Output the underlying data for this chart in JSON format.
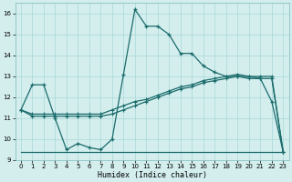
{
  "xlabel": "Humidex (Indice chaleur)",
  "ylabel": "",
  "xlim": [
    -0.5,
    23.5
  ],
  "ylim": [
    9,
    16.5
  ],
  "yticks": [
    9,
    10,
    11,
    12,
    13,
    14,
    15,
    16
  ],
  "xticks": [
    0,
    1,
    2,
    3,
    4,
    5,
    6,
    7,
    8,
    9,
    10,
    11,
    12,
    13,
    14,
    15,
    16,
    17,
    18,
    19,
    20,
    21,
    22,
    23
  ],
  "bg_color": "#d4eeee",
  "line_color": "#1a6b6b",
  "line1_x": [
    0,
    1,
    2,
    3,
    4,
    5,
    6,
    7,
    8,
    9,
    10,
    11,
    12,
    13,
    14,
    15,
    16,
    17,
    18,
    19,
    20,
    21,
    22,
    23
  ],
  "line1_y": [
    11.4,
    12.6,
    12.6,
    11.0,
    9.5,
    9.8,
    9.6,
    9.5,
    10.0,
    13.1,
    16.2,
    15.4,
    15.4,
    15.0,
    14.1,
    14.1,
    13.5,
    13.2,
    13.0,
    13.0,
    13.0,
    12.9,
    11.8,
    9.4
  ],
  "line2_x": [
    0,
    1,
    2,
    3,
    4,
    5,
    6,
    7,
    8,
    9,
    10,
    11,
    12,
    13,
    14,
    15,
    16,
    17,
    18,
    19,
    20,
    21,
    22,
    23
  ],
  "line2_y": [
    11.4,
    11.2,
    11.2,
    11.2,
    11.2,
    11.2,
    11.2,
    11.2,
    11.4,
    11.6,
    11.8,
    11.9,
    12.1,
    12.3,
    12.5,
    12.6,
    12.8,
    12.9,
    13.0,
    13.1,
    13.0,
    13.0,
    13.0,
    9.4
  ],
  "line2b_x": [
    0,
    1,
    2,
    3,
    4,
    5,
    6,
    7,
    8,
    9,
    10,
    11,
    12,
    13,
    14,
    15,
    16,
    17,
    18,
    19,
    20,
    21,
    22,
    23
  ],
  "line2b_y": [
    11.4,
    11.1,
    11.1,
    11.1,
    11.1,
    11.1,
    11.1,
    11.1,
    11.2,
    11.4,
    11.6,
    11.8,
    12.0,
    12.2,
    12.4,
    12.5,
    12.7,
    12.8,
    12.9,
    13.0,
    12.9,
    12.9,
    12.9,
    9.4
  ],
  "line3_x": [
    0,
    10,
    22,
    23
  ],
  "line3_y": [
    9.4,
    9.4,
    9.4,
    9.4
  ]
}
